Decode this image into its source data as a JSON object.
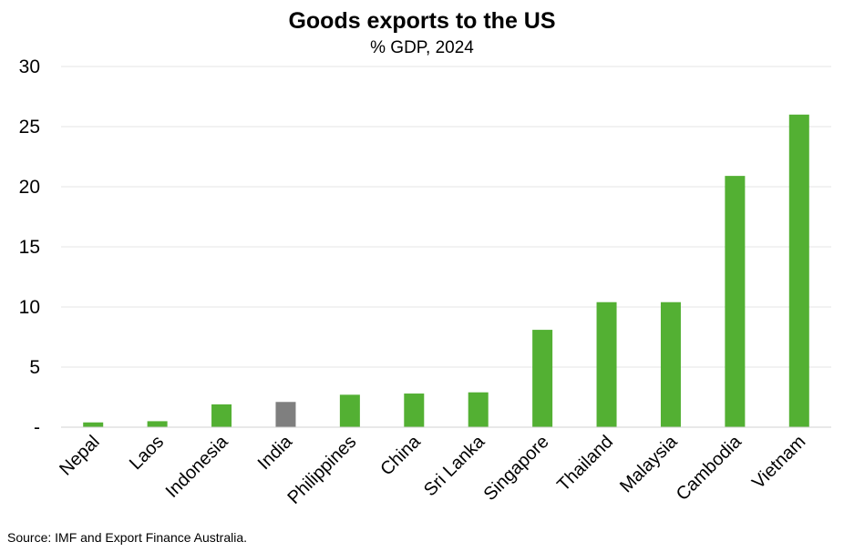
{
  "chart_data": {
    "type": "bar",
    "title": "Goods exports to the US",
    "subtitle": "% GDP, 2024",
    "xlabel": "",
    "ylabel": "",
    "categories": [
      "Nepal",
      "Laos",
      "Indonesia",
      "India",
      "Philippines",
      "China",
      "Sri Lanka",
      "Singapore",
      "Thailand",
      "Malaysia",
      "Cambodia",
      "Vietnam"
    ],
    "values": [
      0.4,
      0.5,
      1.9,
      2.1,
      2.7,
      2.8,
      2.9,
      8.1,
      10.4,
      10.4,
      20.9,
      26.0
    ],
    "ylim": [
      0,
      30
    ],
    "yticks": [
      0,
      5,
      10,
      15,
      20,
      25,
      30
    ],
    "ytick_labels": [
      "-",
      "5",
      "10",
      "15",
      "20",
      "25",
      "30"
    ],
    "grid": true,
    "legend": "none",
    "colors": {
      "default": "#53b033",
      "highlight": "#7f7f7f"
    },
    "highlight_category": "India"
  },
  "source_note": "Source: IMF and Export Finance Australia."
}
